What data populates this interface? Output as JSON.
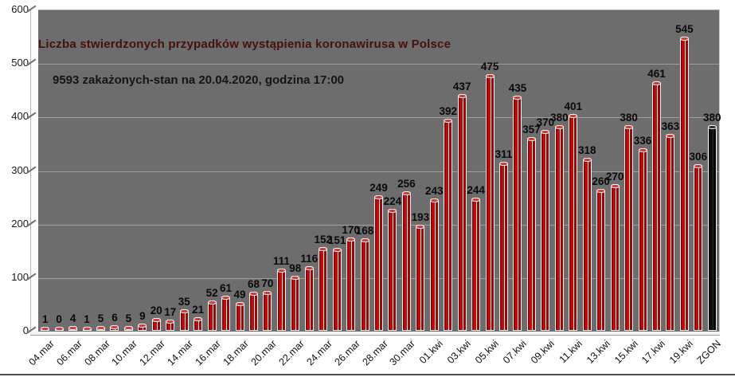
{
  "chart_data": {
    "type": "bar",
    "title": "Liczba stwierdzonych przypadków wystąpienia koronawirusa w Polsce",
    "subtitle": "9593 zakażonych-stan  na 20.04.2020, godzina  17:00",
    "ylim": [
      0,
      600
    ],
    "yticks": [
      0,
      100,
      200,
      300,
      400,
      500,
      600
    ],
    "grid": "horizontal",
    "legend": "none",
    "x_tick_labels": [
      "04.mar",
      "06.mar",
      "08.mar",
      "10.mar",
      "12.mar",
      "14.mar",
      "16.mar",
      "18.mar",
      "20.mar",
      "22.mar",
      "24.mar",
      "26.mar",
      "28.mar",
      "30.mar",
      "01.kwi",
      "03.kwi",
      "05.kwi",
      "07.kwi",
      "09.kwi",
      "11.kwi",
      "13.kwi",
      "15.kwi",
      "17.kwi",
      "19.kwi",
      "ZGON"
    ],
    "tick_every_n_bars": 2,
    "values": [
      1,
      0,
      4,
      1,
      5,
      6,
      5,
      9,
      20,
      17,
      35,
      21,
      52,
      61,
      49,
      68,
      70,
      111,
      98,
      116,
      152,
      151,
      170,
      168,
      249,
      224,
      256,
      193,
      243,
      392,
      437,
      244,
      475,
      311,
      435,
      357,
      370,
      380,
      401,
      318,
      260,
      270,
      380,
      336,
      461,
      363,
      545,
      306,
      380
    ],
    "value_labels_shown": true,
    "last_bar_label": "ZGON",
    "last_bar_is_black": true,
    "colors": {
      "bar_main": "#c90707",
      "bar_dark": "#870000",
      "bar_shadow_side": "#a30404",
      "bar_highlight": "#ffffff",
      "bar_cap": "#d93636",
      "zgon_bar_main": "#0d0d0d",
      "zgon_bar_dark": "#000000",
      "zgon_bar_cap": "#2e2e2e",
      "plot_background": "#6d6d6d",
      "gridline": "#9e9e9e",
      "title_color": "#471111",
      "subtitle_color": "#151515",
      "value_label_color": "#0a0a0a",
      "axis_label_color": "#1a1a1a",
      "tick_mark_color": "#6f6f6f"
    }
  }
}
